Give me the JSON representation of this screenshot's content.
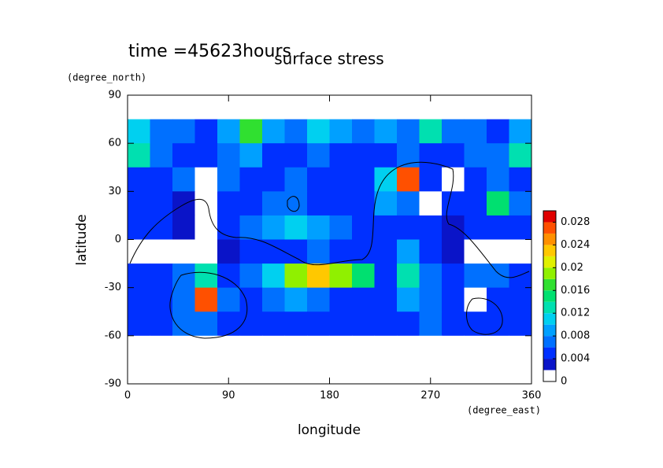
{
  "chart_data": {
    "type": "heatmap",
    "annotation": "time =45623hours",
    "title": "surface stress",
    "xlabel": "longitude",
    "ylabel": "latitude",
    "xunit": "(degree_east)",
    "yunit": "(degree_north)",
    "xlim": [
      0,
      360
    ],
    "ylim": [
      -90,
      90
    ],
    "xticks": [
      0,
      90,
      180,
      270,
      360
    ],
    "yticks": [
      -90,
      -60,
      -30,
      0,
      30,
      60,
      90
    ],
    "x": [
      10,
      30,
      50,
      70,
      90,
      110,
      130,
      150,
      170,
      190,
      210,
      230,
      250,
      270,
      290,
      310,
      330,
      350
    ],
    "y": [
      82.5,
      67.5,
      52.5,
      37.5,
      22.5,
      7.5,
      -7.5,
      -22.5,
      -37.5,
      -52.5,
      -67.5,
      -82.5
    ],
    "z": [
      [
        0,
        0,
        0,
        0,
        0,
        0,
        0,
        0,
        0,
        0,
        0,
        0,
        0,
        0,
        0,
        0,
        0,
        0
      ],
      [
        0.01,
        0.006,
        0.006,
        0.005,
        0.008,
        0.016,
        0.008,
        0.006,
        0.01,
        0.008,
        0.006,
        0.008,
        0.006,
        0.012,
        0.006,
        0.006,
        0.004,
        0.008
      ],
      [
        0.012,
        0.006,
        0.004,
        0.004,
        0.006,
        0.008,
        0.004,
        0.004,
        0.006,
        0.004,
        0.004,
        0.004,
        0.006,
        0.004,
        0.004,
        0.006,
        0.006,
        0.012
      ],
      [
        0.004,
        0.004,
        0.006,
        0,
        0.006,
        0.004,
        0.004,
        0.006,
        0.004,
        0.004,
        0.004,
        0.01,
        0.026,
        0.004,
        0,
        0.004,
        0.006,
        0.004
      ],
      [
        0.004,
        0.004,
        0.002,
        0,
        0.004,
        0.004,
        0.006,
        0.006,
        0.004,
        0.004,
        0.004,
        0.008,
        0.006,
        0,
        0.004,
        0.004,
        0.014,
        0.006
      ],
      [
        0.004,
        0.004,
        0.002,
        0,
        0.004,
        0.006,
        0.008,
        0.01,
        0.008,
        0.006,
        0.004,
        0.004,
        0.004,
        0.004,
        0.002,
        0.004,
        0.004,
        0.004
      ],
      [
        0,
        0,
        0,
        0,
        0.002,
        0.004,
        0.004,
        0.004,
        0.006,
        0.004,
        0.004,
        0.004,
        0.008,
        0.004,
        0.002,
        0,
        0,
        0
      ],
      [
        0.004,
        0.004,
        0.006,
        0.012,
        0.004,
        0.006,
        0.01,
        0.018,
        0.022,
        0.018,
        0.014,
        0.004,
        0.012,
        0.006,
        0.004,
        0.006,
        0.006,
        0.004
      ],
      [
        0.004,
        0.004,
        0.006,
        0.026,
        0.006,
        0.004,
        0.006,
        0.008,
        0.006,
        0.004,
        0.004,
        0.004,
        0.008,
        0.006,
        0.004,
        0,
        0.004,
        0.004
      ],
      [
        0.004,
        0.004,
        0.006,
        0.006,
        0.004,
        0.004,
        0.004,
        0.004,
        0.004,
        0.004,
        0.004,
        0.004,
        0.004,
        0.006,
        0.004,
        0.004,
        0.004,
        0.004
      ],
      [
        0,
        0,
        0,
        0,
        0,
        0,
        0,
        0,
        0,
        0,
        0,
        0,
        0,
        0,
        0,
        0,
        0,
        0
      ],
      [
        0,
        0,
        0,
        0,
        0,
        0,
        0,
        0,
        0,
        0,
        0,
        0,
        0,
        0,
        0,
        0,
        0,
        0
      ]
    ],
    "levels": [
      0,
      0.002,
      0.004,
      0.006,
      0.008,
      0.01,
      0.012,
      0.014,
      0.016,
      0.018,
      0.02,
      0.022,
      0.024,
      0.026,
      0.028,
      0.03
    ],
    "colors": [
      "#ffffff",
      "#0a14c8",
      "#0030ff",
      "#0070ff",
      "#00a0ff",
      "#00d0f0",
      "#00e0b0",
      "#00e070",
      "#30e030",
      "#90f000",
      "#e0f000",
      "#ffc800",
      "#ff9000",
      "#ff5000",
      "#e00000"
    ],
    "cticks": [
      0,
      0.004,
      0.008,
      0.012,
      0.016,
      0.02,
      0.024,
      0.028
    ]
  }
}
